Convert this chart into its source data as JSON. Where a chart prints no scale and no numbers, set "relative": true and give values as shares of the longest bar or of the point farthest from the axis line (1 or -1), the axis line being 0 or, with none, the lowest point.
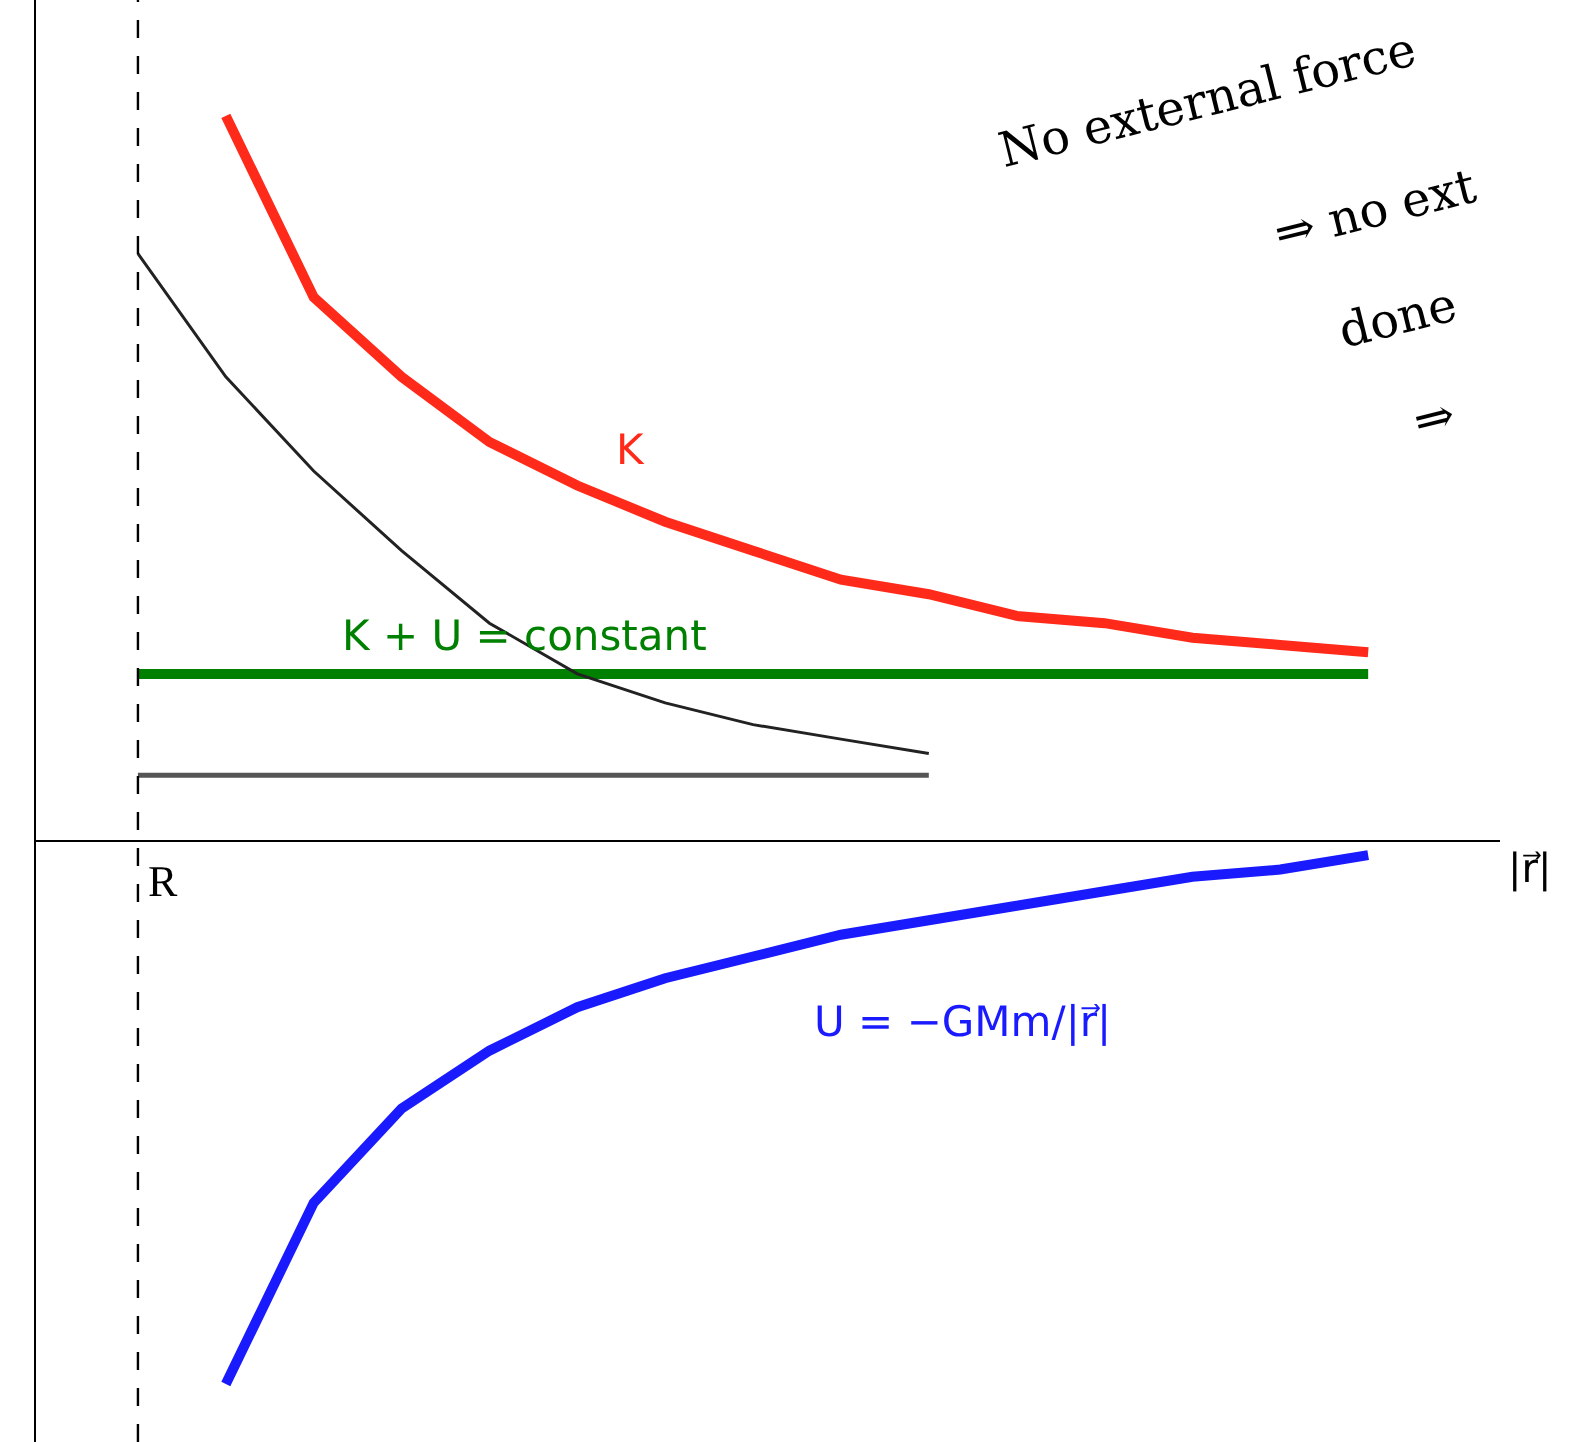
{
  "chart_data": {
    "type": "line",
    "relative": true,
    "xlabel": "|r⃗|",
    "categories": [
      null,
      null,
      null,
      null,
      null,
      null,
      null,
      null,
      null,
      null,
      null,
      null,
      null,
      null,
      null
    ],
    "series": [
      {
        "name": "K",
        "color": "#ff2a1a",
        "values": [
          null,
          1,
          0.75,
          0.64,
          0.55,
          0.49,
          0.44,
          0.4,
          0.36,
          0.34,
          0.31,
          0.3,
          0.28,
          0.27,
          0.26
        ]
      },
      {
        "name": "K + U = constant",
        "color": "#008000",
        "values": [
          0.23,
          0.23,
          0.23,
          0.23,
          0.23,
          0.23,
          0.23,
          0.23,
          0.23,
          0.23,
          0.23,
          0.23,
          0.23,
          0.23,
          0.23
        ]
      },
      {
        "name": "U = −GMm/|r⃗|",
        "color": "#1a1aff",
        "values": [
          null,
          -0.75,
          -0.5,
          -0.37,
          -0.29,
          -0.23,
          -0.19,
          -0.16,
          -0.13,
          -0.11,
          -0.09,
          -0.07,
          -0.05,
          -0.04,
          -0.02
        ]
      },
      {
        "color": "#222222",
        "values": [
          0.81,
          0.64,
          0.51,
          0.4,
          0.3,
          0.23,
          0.19,
          0.16,
          0.14,
          0.12,
          null,
          null,
          null,
          null,
          null
        ]
      },
      {
        "color": "#555555",
        "values": [
          0.09,
          0.09,
          0.09,
          0.09,
          0.09,
          0.09,
          0.09,
          0.09,
          0.09,
          0.09,
          null,
          null,
          null,
          null,
          null
        ]
      }
    ],
    "annotations": [
      "R",
      "No external force",
      "⇒ no ext",
      "done",
      "⇒"
    ],
    "grid": false,
    "legend": false,
    "marker": "none",
    "line_style": "solid"
  }
}
